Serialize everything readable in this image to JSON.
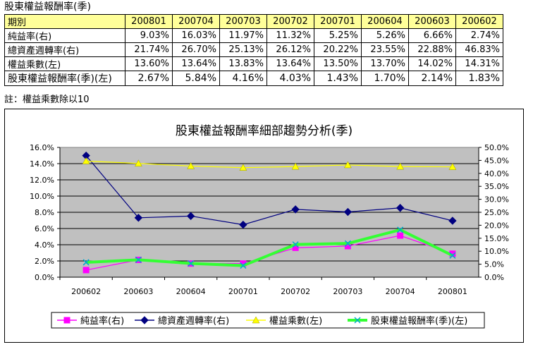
{
  "page": {
    "title": "股東權益報酬率(季)",
    "note": "註：權益乘數除以10"
  },
  "table": {
    "header_label": "期別",
    "periods": [
      "200801",
      "200704",
      "200703",
      "200702",
      "200701",
      "200604",
      "200603",
      "200602"
    ],
    "rows": [
      {
        "label": "純益率(右)",
        "values": [
          "9.03%",
          "16.03%",
          "11.97%",
          "11.32%",
          "5.25%",
          "5.26%",
          "6.66%",
          "2.74%"
        ]
      },
      {
        "label": "總資產週轉率(右)",
        "values": [
          "21.74%",
          "26.70%",
          "25.13%",
          "26.12%",
          "20.22%",
          "23.55%",
          "22.88%",
          "46.83%"
        ]
      },
      {
        "label": "權益乘數(左)",
        "values": [
          "13.60%",
          "13.64%",
          "13.83%",
          "13.64%",
          "13.50%",
          "13.70%",
          "14.02%",
          "14.31%"
        ]
      },
      {
        "label": "股東權益報酬率(季)(左)",
        "values": [
          "2.67%",
          "5.84%",
          "4.16%",
          "4.03%",
          "1.43%",
          "1.70%",
          "2.14%",
          "1.83%"
        ]
      }
    ]
  },
  "chart_data": {
    "type": "line",
    "title": "股東權益報酬率細部趨勢分析(季)",
    "categories": [
      "200602",
      "200603",
      "200604",
      "200701",
      "200702",
      "200703",
      "200704",
      "200801"
    ],
    "left_ticks": [
      "0.0%",
      "2.0%",
      "4.0%",
      "6.0%",
      "8.0%",
      "10.0%",
      "12.0%",
      "14.0%",
      "16.0%"
    ],
    "right_ticks": [
      "0.0%",
      "5.0%",
      "10.0%",
      "15.0%",
      "20.0%",
      "25.0%",
      "30.0%",
      "35.0%",
      "40.0%",
      "45.0%",
      "50.0%"
    ],
    "ylim_left": [
      0,
      16
    ],
    "ylim_right": [
      0,
      50
    ],
    "grid": true,
    "legend_position": "bottom",
    "series": [
      {
        "name": "純益率(右)",
        "axis": "right",
        "color": "#ff00ff",
        "marker": "square",
        "values": [
          2.74,
          6.66,
          5.26,
          5.25,
          11.32,
          11.97,
          16.03,
          9.03
        ]
      },
      {
        "name": "總資產週轉率(右)",
        "axis": "right",
        "color": "#000080",
        "marker": "diamond",
        "values": [
          46.83,
          22.88,
          23.55,
          20.22,
          26.12,
          25.13,
          26.7,
          21.74
        ]
      },
      {
        "name": "權益乘數(左)",
        "axis": "left",
        "color": "#ffff00",
        "marker": "triangle",
        "values": [
          14.31,
          14.02,
          13.7,
          13.5,
          13.64,
          13.83,
          13.64,
          13.6
        ]
      },
      {
        "name": "股東權益報酬率(季)(左)",
        "axis": "left",
        "color": "#33ff33",
        "marker": "x",
        "thick": true,
        "values": [
          1.83,
          2.14,
          1.7,
          1.43,
          4.03,
          4.16,
          5.84,
          2.67
        ]
      }
    ]
  }
}
